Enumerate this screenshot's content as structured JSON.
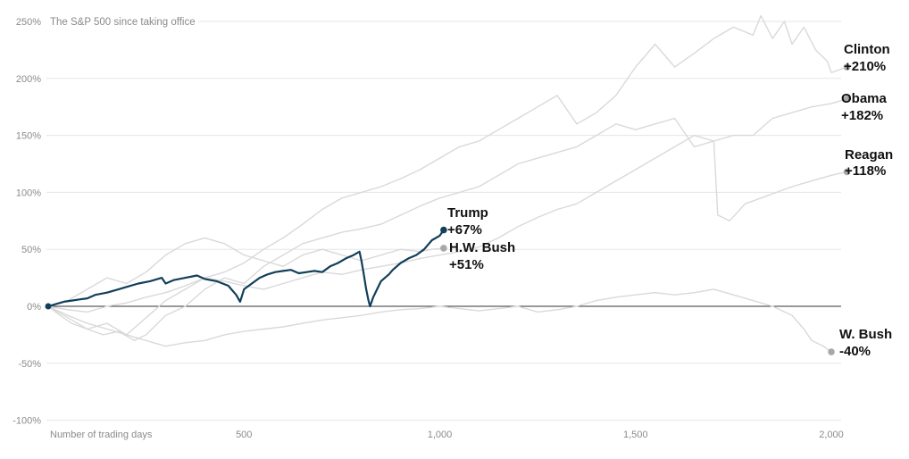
{
  "chart_data": {
    "type": "line",
    "title": "The S&P 500 since taking office",
    "xlabel": "Number of trading days",
    "ylabel": "",
    "xlim": [
      0,
      2020
    ],
    "ylim": [
      -100,
      255
    ],
    "y_ticks": [
      {
        "value": 250,
        "label": "250%"
      },
      {
        "value": 200,
        "label": "200%"
      },
      {
        "value": 150,
        "label": "150%"
      },
      {
        "value": 100,
        "label": "100%"
      },
      {
        "value": 50,
        "label": "50%"
      },
      {
        "value": 0,
        "label": "0%"
      },
      {
        "value": -50,
        "label": "-50%"
      },
      {
        "value": -100,
        "label": "-100%"
      }
    ],
    "x_ticks": [
      {
        "value": 500,
        "label": "500"
      },
      {
        "value": 1000,
        "label": "1,000"
      },
      {
        "value": 1500,
        "label": "1,500"
      },
      {
        "value": 2000,
        "label": "2,000"
      }
    ],
    "grid": true,
    "highlight_color": "#123f5a",
    "background_color": "#d9d9d9",
    "series": [
      {
        "name": "Clinton",
        "value_label": "+210%",
        "end_value": 210,
        "highlight": false,
        "points": [
          [
            0,
            0
          ],
          [
            50,
            -3
          ],
          [
            100,
            -5
          ],
          [
            150,
            0
          ],
          [
            200,
            3
          ],
          [
            250,
            8
          ],
          [
            300,
            12
          ],
          [
            350,
            18
          ],
          [
            400,
            25
          ],
          [
            450,
            30
          ],
          [
            500,
            38
          ],
          [
            550,
            50
          ],
          [
            600,
            60
          ],
          [
            650,
            72
          ],
          [
            700,
            85
          ],
          [
            750,
            95
          ],
          [
            800,
            100
          ],
          [
            850,
            105
          ],
          [
            900,
            112
          ],
          [
            950,
            120
          ],
          [
            1000,
            130
          ],
          [
            1050,
            140
          ],
          [
            1100,
            145
          ],
          [
            1150,
            155
          ],
          [
            1200,
            165
          ],
          [
            1250,
            175
          ],
          [
            1300,
            185
          ],
          [
            1330,
            170
          ],
          [
            1350,
            160
          ],
          [
            1400,
            170
          ],
          [
            1450,
            185
          ],
          [
            1500,
            210
          ],
          [
            1550,
            230
          ],
          [
            1600,
            210
          ],
          [
            1650,
            222
          ],
          [
            1700,
            235
          ],
          [
            1750,
            245
          ],
          [
            1800,
            238
          ],
          [
            1820,
            255
          ],
          [
            1850,
            235
          ],
          [
            1880,
            250
          ],
          [
            1900,
            230
          ],
          [
            1930,
            245
          ],
          [
            1960,
            225
          ],
          [
            1990,
            215
          ],
          [
            2000,
            205
          ],
          [
            2020,
            210
          ]
        ]
      },
      {
        "name": "Obama",
        "value_label": "+182%",
        "end_value": 182,
        "highlight": false,
        "points": [
          [
            0,
            0
          ],
          [
            30,
            -8
          ],
          [
            60,
            -15
          ],
          [
            100,
            -20
          ],
          [
            140,
            -25
          ],
          [
            180,
            -22
          ],
          [
            220,
            -30
          ],
          [
            250,
            -25
          ],
          [
            300,
            -8
          ],
          [
            350,
            0
          ],
          [
            400,
            15
          ],
          [
            450,
            25
          ],
          [
            500,
            20
          ],
          [
            550,
            35
          ],
          [
            600,
            45
          ],
          [
            650,
            55
          ],
          [
            700,
            60
          ],
          [
            750,
            65
          ],
          [
            800,
            68
          ],
          [
            850,
            72
          ],
          [
            900,
            80
          ],
          [
            950,
            88
          ],
          [
            1000,
            95
          ],
          [
            1050,
            100
          ],
          [
            1100,
            105
          ],
          [
            1150,
            115
          ],
          [
            1200,
            125
          ],
          [
            1250,
            130
          ],
          [
            1300,
            135
          ],
          [
            1350,
            140
          ],
          [
            1400,
            150
          ],
          [
            1450,
            160
          ],
          [
            1500,
            155
          ],
          [
            1550,
            160
          ],
          [
            1600,
            165
          ],
          [
            1650,
            140
          ],
          [
            1700,
            145
          ],
          [
            1750,
            150
          ],
          [
            1800,
            150
          ],
          [
            1850,
            165
          ],
          [
            1900,
            170
          ],
          [
            1950,
            175
          ],
          [
            2000,
            178
          ],
          [
            2020,
            182
          ]
        ]
      },
      {
        "name": "Reagan",
        "value_label": "+118%",
        "end_value": 118,
        "highlight": false,
        "points": [
          [
            0,
            0
          ],
          [
            50,
            -10
          ],
          [
            100,
            -20
          ],
          [
            150,
            -15
          ],
          [
            200,
            -25
          ],
          [
            250,
            -10
          ],
          [
            300,
            5
          ],
          [
            350,
            15
          ],
          [
            400,
            25
          ],
          [
            450,
            22
          ],
          [
            500,
            18
          ],
          [
            550,
            15
          ],
          [
            600,
            20
          ],
          [
            650,
            25
          ],
          [
            700,
            30
          ],
          [
            750,
            28
          ],
          [
            800,
            32
          ],
          [
            850,
            35
          ],
          [
            900,
            38
          ],
          [
            950,
            42
          ],
          [
            1000,
            45
          ],
          [
            1050,
            48
          ],
          [
            1100,
            52
          ],
          [
            1150,
            60
          ],
          [
            1200,
            70
          ],
          [
            1250,
            78
          ],
          [
            1300,
            85
          ],
          [
            1350,
            90
          ],
          [
            1400,
            100
          ],
          [
            1450,
            110
          ],
          [
            1500,
            120
          ],
          [
            1550,
            130
          ],
          [
            1600,
            140
          ],
          [
            1650,
            150
          ],
          [
            1700,
            145
          ],
          [
            1710,
            80
          ],
          [
            1740,
            75
          ],
          [
            1780,
            90
          ],
          [
            1820,
            95
          ],
          [
            1860,
            100
          ],
          [
            1900,
            105
          ],
          [
            1950,
            110
          ],
          [
            2000,
            115
          ],
          [
            2020,
            118
          ]
        ]
      },
      {
        "name": "H.W. Bush",
        "value_label": "+51%",
        "end_value": 51,
        "highlight": false,
        "points": [
          [
            0,
            0
          ],
          [
            50,
            5
          ],
          [
            100,
            15
          ],
          [
            150,
            25
          ],
          [
            200,
            20
          ],
          [
            250,
            30
          ],
          [
            300,
            45
          ],
          [
            350,
            55
          ],
          [
            400,
            60
          ],
          [
            450,
            55
          ],
          [
            500,
            45
          ],
          [
            550,
            40
          ],
          [
            600,
            35
          ],
          [
            650,
            45
          ],
          [
            700,
            50
          ],
          [
            750,
            45
          ],
          [
            800,
            40
          ],
          [
            850,
            45
          ],
          [
            900,
            50
          ],
          [
            950,
            48
          ],
          [
            980,
            50
          ],
          [
            1010,
            51
          ]
        ]
      },
      {
        "name": "W. Bush",
        "value_label": "-40%",
        "end_value": -40,
        "highlight": false,
        "points": [
          [
            0,
            0
          ],
          [
            50,
            -8
          ],
          [
            100,
            -15
          ],
          [
            150,
            -20
          ],
          [
            200,
            -25
          ],
          [
            250,
            -30
          ],
          [
            300,
            -35
          ],
          [
            350,
            -32
          ],
          [
            400,
            -30
          ],
          [
            450,
            -25
          ],
          [
            500,
            -22
          ],
          [
            550,
            -20
          ],
          [
            600,
            -18
          ],
          [
            650,
            -15
          ],
          [
            700,
            -12
          ],
          [
            750,
            -10
          ],
          [
            800,
            -8
          ],
          [
            850,
            -5
          ],
          [
            900,
            -3
          ],
          [
            950,
            -2
          ],
          [
            1000,
            0
          ],
          [
            1050,
            -2
          ],
          [
            1100,
            -4
          ],
          [
            1150,
            -2
          ],
          [
            1200,
            0
          ],
          [
            1250,
            -5
          ],
          [
            1300,
            -3
          ],
          [
            1350,
            0
          ],
          [
            1400,
            5
          ],
          [
            1450,
            8
          ],
          [
            1500,
            10
          ],
          [
            1550,
            12
          ],
          [
            1600,
            10
          ],
          [
            1650,
            12
          ],
          [
            1700,
            15
          ],
          [
            1750,
            10
          ],
          [
            1800,
            5
          ],
          [
            1850,
            0
          ],
          [
            1900,
            -8
          ],
          [
            1930,
            -20
          ],
          [
            1950,
            -30
          ],
          [
            1980,
            -35
          ],
          [
            2000,
            -40
          ]
        ]
      },
      {
        "name": "Trump",
        "value_label": "+67%",
        "end_value": 67,
        "highlight": true,
        "points": [
          [
            0,
            0
          ],
          [
            20,
            2
          ],
          [
            40,
            4
          ],
          [
            60,
            5
          ],
          [
            80,
            6
          ],
          [
            100,
            7
          ],
          [
            120,
            10
          ],
          [
            150,
            12
          ],
          [
            180,
            15
          ],
          [
            200,
            17
          ],
          [
            230,
            20
          ],
          [
            260,
            22
          ],
          [
            290,
            25
          ],
          [
            300,
            20
          ],
          [
            320,
            23
          ],
          [
            350,
            25
          ],
          [
            380,
            27
          ],
          [
            400,
            24
          ],
          [
            430,
            22
          ],
          [
            460,
            18
          ],
          [
            480,
            10
          ],
          [
            490,
            4
          ],
          [
            500,
            15
          ],
          [
            520,
            20
          ],
          [
            540,
            25
          ],
          [
            560,
            28
          ],
          [
            580,
            30
          ],
          [
            600,
            31
          ],
          [
            620,
            32
          ],
          [
            640,
            29
          ],
          [
            660,
            30
          ],
          [
            680,
            31
          ],
          [
            700,
            30
          ],
          [
            720,
            35
          ],
          [
            740,
            38
          ],
          [
            760,
            42
          ],
          [
            780,
            45
          ],
          [
            795,
            48
          ],
          [
            800,
            40
          ],
          [
            805,
            30
          ],
          [
            812,
            15
          ],
          [
            818,
            5
          ],
          [
            822,
            0
          ],
          [
            830,
            8
          ],
          [
            840,
            15
          ],
          [
            850,
            22
          ],
          [
            860,
            25
          ],
          [
            870,
            28
          ],
          [
            880,
            32
          ],
          [
            900,
            38
          ],
          [
            920,
            42
          ],
          [
            940,
            45
          ],
          [
            960,
            50
          ],
          [
            980,
            58
          ],
          [
            1000,
            62
          ],
          [
            1010,
            67
          ]
        ]
      }
    ]
  }
}
